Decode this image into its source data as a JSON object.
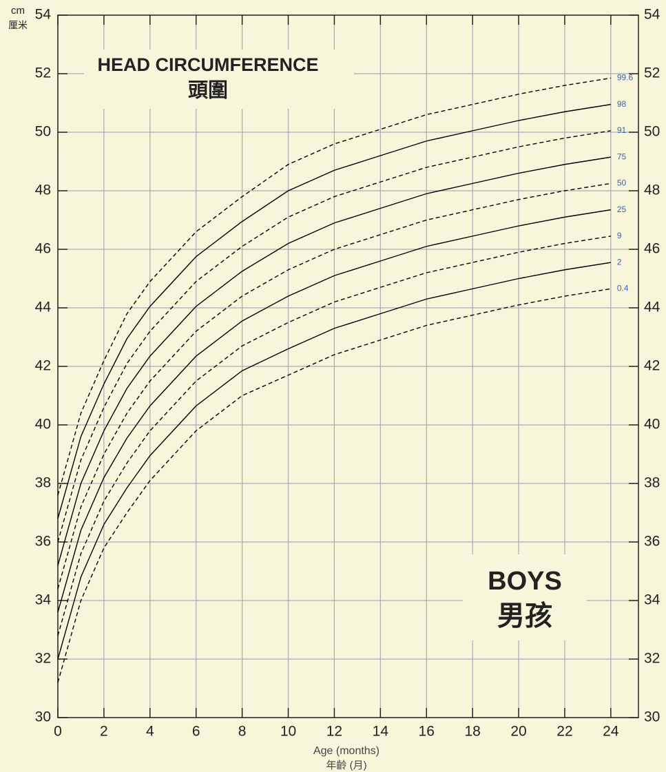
{
  "chart_data": {
    "type": "line",
    "title": "HEAD CIRCUMFERENCE",
    "subtitle": "頭圍",
    "annotation": "BOYS",
    "annotation_sub": "男孩",
    "y_unit": "cm",
    "y_unit_sub": "厘米",
    "xlabel": "Age (months)",
    "xlabel_sub": "年齡 (月)",
    "x": [
      0,
      1,
      2,
      3,
      4,
      6,
      8,
      10,
      12,
      14,
      16,
      18,
      20,
      22,
      24
    ],
    "series": [
      {
        "name": "0.4",
        "color": "#000000",
        "dash": true,
        "values": [
          31.2,
          34.0,
          35.8,
          37.0,
          38.1,
          39.8,
          41.0,
          41.7,
          42.4,
          42.9,
          43.4,
          43.75,
          44.1,
          44.4,
          44.65
        ]
      },
      {
        "name": "2",
        "color": "#000000",
        "dash": false,
        "values": [
          32.0,
          34.8,
          36.6,
          37.85,
          38.95,
          40.65,
          41.85,
          42.6,
          43.3,
          43.8,
          44.3,
          44.65,
          45.0,
          45.3,
          45.55
        ]
      },
      {
        "name": "9",
        "color": "#000000",
        "dash": true,
        "values": [
          32.8,
          35.6,
          37.4,
          38.7,
          39.8,
          41.5,
          42.7,
          43.5,
          44.2,
          44.7,
          45.2,
          45.55,
          45.9,
          46.2,
          46.45
        ]
      },
      {
        "name": "25",
        "color": "#000000",
        "dash": false,
        "values": [
          33.6,
          36.4,
          38.2,
          39.55,
          40.65,
          42.35,
          43.55,
          44.4,
          45.1,
          45.6,
          46.1,
          46.45,
          46.8,
          47.1,
          47.35
        ]
      },
      {
        "name": "50",
        "color": "#000000",
        "dash": true,
        "values": [
          34.4,
          37.2,
          39.0,
          40.4,
          41.5,
          43.2,
          44.4,
          45.3,
          46.0,
          46.5,
          47.0,
          47.35,
          47.7,
          48.0,
          48.25
        ]
      },
      {
        "name": "75",
        "color": "#000000",
        "dash": false,
        "values": [
          35.2,
          38.0,
          39.8,
          41.25,
          42.35,
          44.05,
          45.25,
          46.2,
          46.9,
          47.4,
          47.9,
          48.25,
          48.6,
          48.9,
          49.15
        ]
      },
      {
        "name": "91",
        "color": "#000000",
        "dash": true,
        "values": [
          36.0,
          38.8,
          40.6,
          42.1,
          43.2,
          44.9,
          46.1,
          47.1,
          47.8,
          48.3,
          48.8,
          49.15,
          49.5,
          49.8,
          50.05
        ]
      },
      {
        "name": "98",
        "color": "#000000",
        "dash": false,
        "values": [
          36.8,
          39.6,
          41.4,
          42.95,
          44.05,
          45.75,
          46.95,
          48.0,
          48.7,
          49.2,
          49.7,
          50.05,
          50.4,
          50.7,
          50.95
        ]
      },
      {
        "name": "99.6",
        "color": "#000000",
        "dash": true,
        "values": [
          37.6,
          40.4,
          42.2,
          43.8,
          44.9,
          46.6,
          47.8,
          48.9,
          49.6,
          50.1,
          50.6,
          50.95,
          51.3,
          51.6,
          51.85
        ]
      }
    ],
    "label_color": "#3a62c0",
    "xlim": [
      0,
      25.2
    ],
    "ylim": [
      30,
      54
    ],
    "xticks": [
      0,
      2,
      4,
      6,
      8,
      10,
      12,
      14,
      16,
      18,
      20,
      22,
      24
    ],
    "yticks": [
      30,
      32,
      34,
      36,
      38,
      40,
      42,
      44,
      46,
      48,
      50,
      52,
      54
    ],
    "grid": true,
    "background": "#f8f6da"
  }
}
